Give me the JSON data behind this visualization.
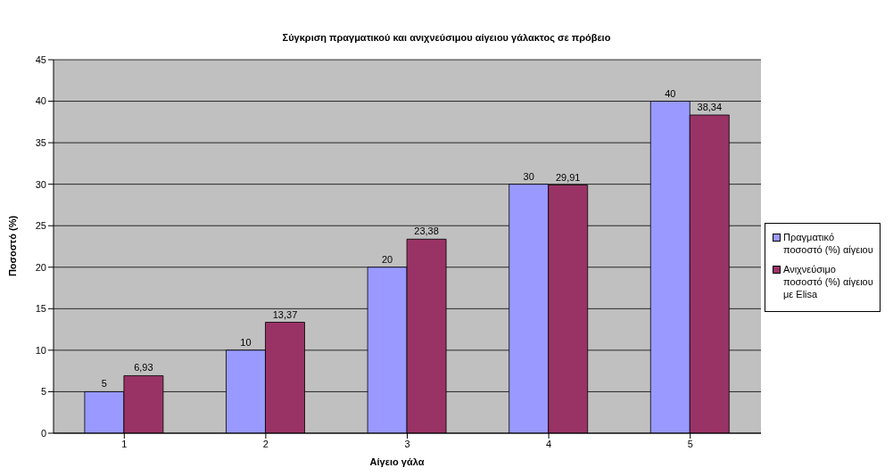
{
  "chart_data": {
    "type": "bar",
    "title": "Σύγκριση πραγματικού και ανιχνεύσιμου αίγειου γάλακτος σε πρόβειο",
    "xlabel": "Αίγειο γάλα",
    "ylabel": "Ποσοστό (%)",
    "categories": [
      "1",
      "2",
      "3",
      "4",
      "5"
    ],
    "series": [
      {
        "name": "Πραγματικό ποσοστό (%) αίγειου",
        "color": "#9999ff",
        "values": [
          5,
          10,
          20,
          30,
          40
        ],
        "value_labels": [
          "5",
          "10",
          "20",
          "30",
          "40"
        ]
      },
      {
        "name": "Ανιχνεύσιμο ποσοστό (%) αίγειου με Elisa",
        "color": "#993366",
        "values": [
          6.93,
          13.37,
          23.38,
          29.91,
          38.34
        ],
        "value_labels": [
          "6,93",
          "13,37",
          "23,38",
          "29,91",
          "38,34"
        ]
      }
    ],
    "ylim": [
      0,
      45
    ],
    "yticks": [
      0,
      5,
      10,
      15,
      20,
      25,
      30,
      35,
      40,
      45
    ],
    "grid": "y",
    "legend": "right"
  }
}
